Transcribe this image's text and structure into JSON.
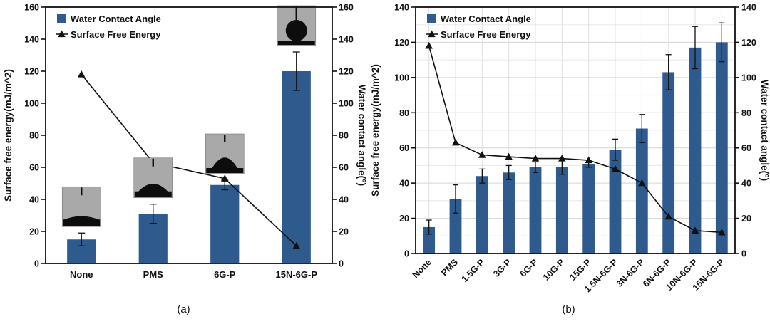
{
  "colors": {
    "bar": "#2e5a8e",
    "line": "#111111",
    "grid": "#d8d8d8",
    "inset_background": "#a9a9a9"
  },
  "chart_data": [
    {
      "type": "bar",
      "panel_label": "(a)",
      "categories": [
        "None",
        "PMS",
        "6G-P",
        "15N-6G-P"
      ],
      "series": [
        {
          "name": "Water Contact Angle",
          "kind": "bar",
          "axis": "right",
          "values": [
            15,
            31,
            49,
            120
          ],
          "errors": [
            4,
            6,
            3,
            12
          ]
        },
        {
          "name": "Surface Free Energy",
          "kind": "line",
          "axis": "left",
          "values": [
            118,
            63,
            53,
            11
          ]
        }
      ],
      "ylabel_left": "Surface free energy(mJ/m^2)",
      "ylabel_right": "Water contact angle(°)",
      "ylim": [
        0,
        160
      ],
      "ytick_step": 20,
      "grid": false,
      "legend_position": "top-left",
      "insets": [
        {
          "category": "None",
          "droplet_shape": "spread-flat"
        },
        {
          "category": "PMS",
          "droplet_shape": "low-dome"
        },
        {
          "category": "6G-P",
          "droplet_shape": "dome"
        },
        {
          "category": "15N-6G-P",
          "droplet_shape": "bead"
        }
      ]
    },
    {
      "type": "bar",
      "panel_label": "(b)",
      "categories": [
        "None",
        "PMS",
        "1.5G-P",
        "3G-P",
        "6G-P",
        "10G-P",
        "15G-P",
        "1.5N-6G-P",
        "3N-6G-P",
        "6N-6G-P",
        "10N-6G-P",
        "15N-6G-P"
      ],
      "series": [
        {
          "name": "Water Contact Angle",
          "kind": "bar",
          "axis": "right",
          "values": [
            15,
            31,
            44,
            46,
            49,
            49,
            51,
            59,
            71,
            103,
            117,
            120
          ],
          "errors": [
            4,
            8,
            4,
            4,
            3,
            4,
            2,
            6,
            8,
            10,
            12,
            11
          ]
        },
        {
          "name": "Surface Free Energy",
          "kind": "line",
          "axis": "left",
          "values": [
            118,
            63,
            56,
            55,
            54,
            54,
            53,
            48,
            40,
            21,
            13,
            12
          ]
        }
      ],
      "ylabel_left": "Surface free energy(mJ/m^2)",
      "ylabel_right": "Water contact angle(°)",
      "ylim": [
        0,
        140
      ],
      "ytick_step": 20,
      "grid": true,
      "legend_position": "top-left"
    }
  ]
}
